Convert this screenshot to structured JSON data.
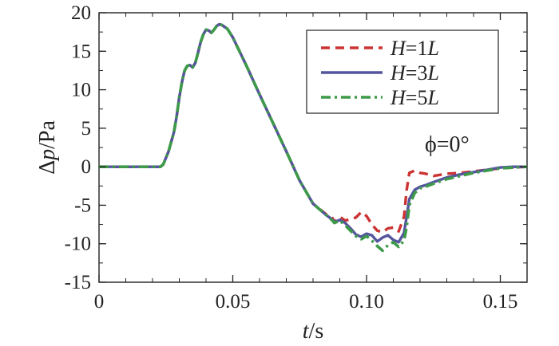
{
  "chart_data": {
    "type": "line",
    "xlabel": "t/s",
    "xlabel_var": "t",
    "xlabel_unit": "/s",
    "ylabel": "Δp/Pa",
    "ylabel_prefix": "Δ",
    "ylabel_var": "p",
    "ylabel_unit": "/Pa",
    "xlim": [
      0,
      0.16
    ],
    "ylim": [
      -15,
      20
    ],
    "x_ticks": [
      0,
      0.05,
      0.1,
      0.15
    ],
    "x_tick_labels": [
      "0",
      "0.05",
      "0.10",
      "0.15"
    ],
    "y_ticks": [
      -15,
      -10,
      -5,
      0,
      5,
      10,
      15,
      20
    ],
    "y_tick_labels": [
      "-15",
      "-10",
      "-5",
      "0",
      "5",
      "10",
      "15",
      "20"
    ],
    "grid": false,
    "legend_position": "top-right",
    "annotation": {
      "symbol": "ϕ",
      "text": "=0°"
    },
    "series": [
      {
        "name": "H=1L",
        "label_var": "H",
        "label_rest": "=1",
        "label_unit": "L",
        "color": "#cc3333",
        "style": "dashed",
        "points": [
          [
            0.0,
            0
          ],
          [
            0.023,
            0
          ],
          [
            0.024,
            0.3
          ],
          [
            0.026,
            2
          ],
          [
            0.028,
            4.5
          ],
          [
            0.029,
            6.5
          ],
          [
            0.03,
            9
          ],
          [
            0.031,
            11
          ],
          [
            0.032,
            12.5
          ],
          [
            0.033,
            13.1
          ],
          [
            0.034,
            13.2
          ],
          [
            0.035,
            12.9
          ],
          [
            0.036,
            13.5
          ],
          [
            0.037,
            14.8
          ],
          [
            0.038,
            16.2
          ],
          [
            0.039,
            17.2
          ],
          [
            0.04,
            17.8
          ],
          [
            0.041,
            17.7
          ],
          [
            0.042,
            17.4
          ],
          [
            0.043,
            17.8
          ],
          [
            0.044,
            18.3
          ],
          [
            0.045,
            18.5
          ],
          [
            0.046,
            18.4
          ],
          [
            0.048,
            17.9
          ],
          [
            0.05,
            16.8
          ],
          [
            0.055,
            13.2
          ],
          [
            0.06,
            9.4
          ],
          [
            0.065,
            5.7
          ],
          [
            0.07,
            2.0
          ],
          [
            0.075,
            -1.8
          ],
          [
            0.08,
            -4.8
          ],
          [
            0.085,
            -6.2
          ],
          [
            0.087,
            -6.5
          ],
          [
            0.088,
            -7.2
          ],
          [
            0.09,
            -6.5
          ],
          [
            0.092,
            -7.0
          ],
          [
            0.094,
            -6.8
          ],
          [
            0.096,
            -6.6
          ],
          [
            0.098,
            -5.9
          ],
          [
            0.1,
            -6.4
          ],
          [
            0.102,
            -7.5
          ],
          [
            0.104,
            -8.3
          ],
          [
            0.106,
            -8.5
          ],
          [
            0.108,
            -8.0
          ],
          [
            0.11,
            -7.9
          ],
          [
            0.112,
            -8.4
          ],
          [
            0.114,
            -6.5
          ],
          [
            0.115,
            -3.0
          ],
          [
            0.116,
            -0.8
          ],
          [
            0.118,
            -0.5
          ],
          [
            0.12,
            -0.8
          ],
          [
            0.122,
            -0.9
          ],
          [
            0.125,
            -1.2
          ],
          [
            0.13,
            -0.9
          ],
          [
            0.135,
            -0.8
          ],
          [
            0.14,
            -0.6
          ],
          [
            0.145,
            -0.4
          ],
          [
            0.15,
            -0.2
          ],
          [
            0.155,
            -0.1
          ],
          [
            0.16,
            0
          ]
        ]
      },
      {
        "name": "H=3L",
        "label_var": "H",
        "label_rest": "=3",
        "label_unit": "L",
        "color": "#55559e",
        "style": "solid",
        "points": [
          [
            0.0,
            0
          ],
          [
            0.023,
            0
          ],
          [
            0.024,
            0.3
          ],
          [
            0.026,
            2
          ],
          [
            0.028,
            4.5
          ],
          [
            0.029,
            6.5
          ],
          [
            0.03,
            9
          ],
          [
            0.031,
            11
          ],
          [
            0.032,
            12.5
          ],
          [
            0.033,
            13.1
          ],
          [
            0.034,
            13.2
          ],
          [
            0.035,
            12.9
          ],
          [
            0.036,
            13.5
          ],
          [
            0.037,
            14.8
          ],
          [
            0.038,
            16.2
          ],
          [
            0.039,
            17.2
          ],
          [
            0.04,
            17.8
          ],
          [
            0.041,
            17.7
          ],
          [
            0.042,
            17.4
          ],
          [
            0.043,
            17.8
          ],
          [
            0.044,
            18.3
          ],
          [
            0.045,
            18.5
          ],
          [
            0.046,
            18.4
          ],
          [
            0.048,
            17.9
          ],
          [
            0.05,
            16.8
          ],
          [
            0.055,
            13.2
          ],
          [
            0.06,
            9.4
          ],
          [
            0.065,
            5.7
          ],
          [
            0.07,
            2.0
          ],
          [
            0.075,
            -1.8
          ],
          [
            0.08,
            -4.8
          ],
          [
            0.085,
            -6.3
          ],
          [
            0.087,
            -6.8
          ],
          [
            0.088,
            -7.2
          ],
          [
            0.09,
            -6.9
          ],
          [
            0.092,
            -7.3
          ],
          [
            0.094,
            -8.0
          ],
          [
            0.096,
            -8.8
          ],
          [
            0.098,
            -9.1
          ],
          [
            0.1,
            -8.7
          ],
          [
            0.102,
            -8.9
          ],
          [
            0.104,
            -9.7
          ],
          [
            0.106,
            -9.2
          ],
          [
            0.108,
            -8.9
          ],
          [
            0.11,
            -9.5
          ],
          [
            0.112,
            -9.8
          ],
          [
            0.114,
            -8.6
          ],
          [
            0.115,
            -6.5
          ],
          [
            0.116,
            -4.2
          ],
          [
            0.118,
            -3.0
          ],
          [
            0.12,
            -2.6
          ],
          [
            0.122,
            -2.4
          ],
          [
            0.125,
            -2.0
          ],
          [
            0.13,
            -1.4
          ],
          [
            0.135,
            -1.0
          ],
          [
            0.14,
            -0.7
          ],
          [
            0.145,
            -0.4
          ],
          [
            0.15,
            -0.1
          ],
          [
            0.155,
            0
          ],
          [
            0.16,
            0
          ]
        ]
      },
      {
        "name": "H=5L",
        "label_var": "H",
        "label_rest": "=5",
        "label_unit": "L",
        "color": "#3d9a49",
        "style": "dashdot",
        "points": [
          [
            0.0,
            0
          ],
          [
            0.023,
            0
          ],
          [
            0.024,
            0.3
          ],
          [
            0.026,
            2
          ],
          [
            0.028,
            4.5
          ],
          [
            0.029,
            6.5
          ],
          [
            0.03,
            9
          ],
          [
            0.031,
            11
          ],
          [
            0.032,
            12.5
          ],
          [
            0.033,
            13.1
          ],
          [
            0.034,
            13.2
          ],
          [
            0.035,
            12.9
          ],
          [
            0.036,
            13.5
          ],
          [
            0.037,
            14.8
          ],
          [
            0.038,
            16.2
          ],
          [
            0.039,
            17.2
          ],
          [
            0.04,
            17.8
          ],
          [
            0.041,
            17.7
          ],
          [
            0.042,
            17.4
          ],
          [
            0.043,
            17.8
          ],
          [
            0.044,
            18.3
          ],
          [
            0.045,
            18.5
          ],
          [
            0.046,
            18.4
          ],
          [
            0.048,
            17.9
          ],
          [
            0.05,
            16.8
          ],
          [
            0.055,
            13.2
          ],
          [
            0.06,
            9.4
          ],
          [
            0.065,
            5.7
          ],
          [
            0.07,
            2.0
          ],
          [
            0.075,
            -1.8
          ],
          [
            0.08,
            -4.8
          ],
          [
            0.085,
            -6.3
          ],
          [
            0.087,
            -6.9
          ],
          [
            0.088,
            -7.3
          ],
          [
            0.09,
            -7.0
          ],
          [
            0.092,
            -7.6
          ],
          [
            0.094,
            -8.3
          ],
          [
            0.096,
            -9.0
          ],
          [
            0.098,
            -9.4
          ],
          [
            0.1,
            -9.0
          ],
          [
            0.102,
            -9.6
          ],
          [
            0.104,
            -10.3
          ],
          [
            0.106,
            -10.9
          ],
          [
            0.108,
            -10.2
          ],
          [
            0.11,
            -9.8
          ],
          [
            0.112,
            -10.4
          ],
          [
            0.114,
            -9.6
          ],
          [
            0.115,
            -7.8
          ],
          [
            0.116,
            -5.0
          ],
          [
            0.118,
            -3.4
          ],
          [
            0.12,
            -2.8
          ],
          [
            0.122,
            -2.6
          ],
          [
            0.125,
            -2.2
          ],
          [
            0.13,
            -1.6
          ],
          [
            0.135,
            -1.2
          ],
          [
            0.14,
            -0.8
          ],
          [
            0.145,
            -0.5
          ],
          [
            0.15,
            -0.2
          ],
          [
            0.155,
            -0.1
          ],
          [
            0.16,
            0
          ]
        ]
      }
    ]
  }
}
